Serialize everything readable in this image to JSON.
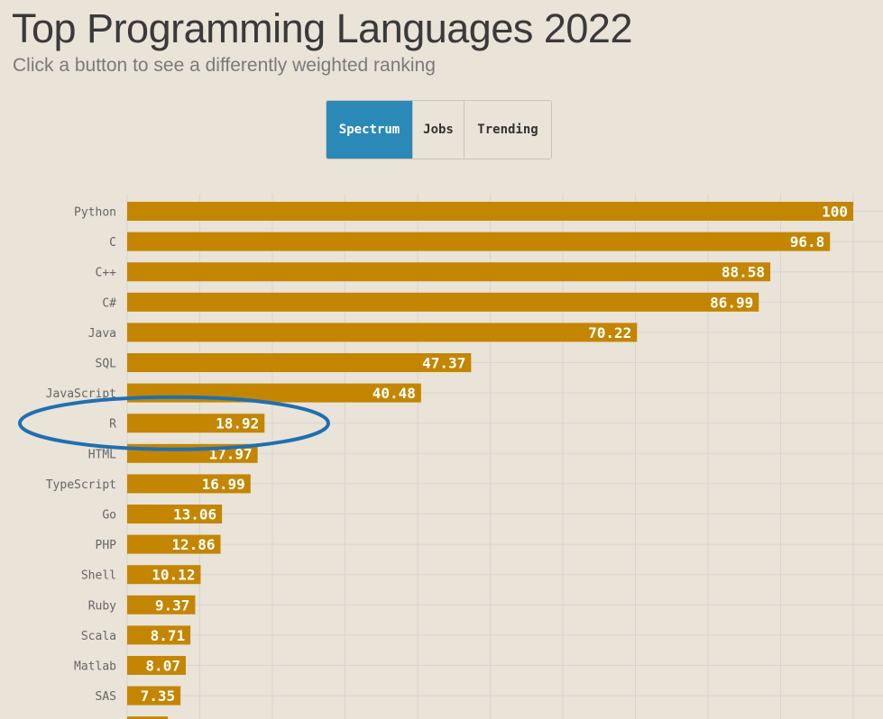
{
  "header": {
    "title": "Top Programming Languages 2022",
    "subtitle": "Click a button to see a differently weighted ranking"
  },
  "buttons": [
    {
      "label": "Spectrum",
      "active": true
    },
    {
      "label": "Jobs",
      "active": false
    },
    {
      "label": "Trending",
      "active": false
    }
  ],
  "colors": {
    "bar": "#c48600",
    "grid": "#d8d6d2",
    "active_button": "#2b89b8",
    "annotation": "#1f6fb2"
  },
  "chart_data": {
    "type": "bar",
    "orientation": "horizontal",
    "title": "Top Programming Languages 2022",
    "xlim": [
      0,
      100
    ],
    "grid": true,
    "categories": [
      "Python",
      "C",
      "C++",
      "C#",
      "Java",
      "SQL",
      "JavaScript",
      "R",
      "HTML",
      "TypeScript",
      "Go",
      "PHP",
      "Shell",
      "Ruby",
      "Scala",
      "Matlab",
      "SAS",
      ""
    ],
    "values": [
      100,
      96.8,
      88.58,
      86.99,
      70.22,
      47.37,
      40.48,
      18.92,
      17.97,
      16.99,
      13.06,
      12.86,
      10.12,
      9.37,
      8.71,
      8.07,
      7.35,
      5.6
    ],
    "value_labels": [
      "100",
      "96.8",
      "88.58",
      "86.99",
      "70.22",
      "47.37",
      "40.48",
      "18.92",
      "17.97",
      "16.99",
      "13.06",
      "12.86",
      "10.12",
      "9.37",
      "8.71",
      "8.07",
      "7.35",
      ""
    ],
    "annotation": {
      "type": "ellipse",
      "target": "R"
    }
  }
}
